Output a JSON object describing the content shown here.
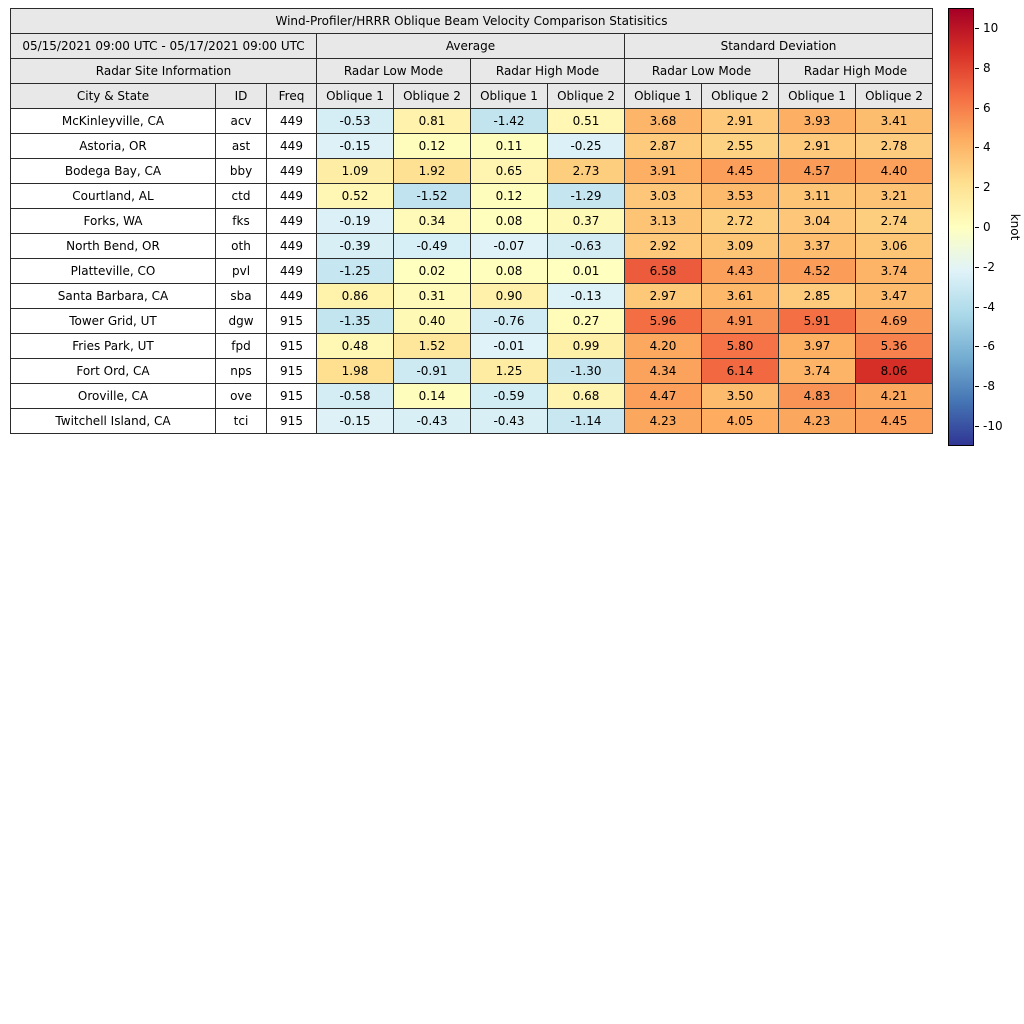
{
  "title": "Wind-Profiler/HRRR Oblique Beam Velocity Comparison Statisitics",
  "header": {
    "date_range": "05/15/2021 09:00 UTC - 05/17/2021 09:00 UTC",
    "group_average": "Average",
    "group_std": "Standard Deviation",
    "site_info": "Radar Site Information",
    "low_mode": "Radar Low Mode",
    "high_mode": "Radar High Mode",
    "col_city": "City & State",
    "col_id": "ID",
    "col_freq": "Freq",
    "oblique1": "Oblique 1",
    "oblique2": "Oblique 2"
  },
  "chart_data": {
    "type": "heatmap",
    "title": "Wind-Profiler/HRRR Oblique Beam Velocity Comparison Statisitics",
    "date_range": "05/15/2021 09:00 UTC - 05/17/2021 09:00 UTC",
    "column_groups": [
      "Average",
      "Standard Deviation"
    ],
    "mode_groups": [
      "Radar Low Mode",
      "Radar High Mode"
    ],
    "value_columns": [
      "Oblique 1",
      "Oblique 2",
      "Oblique 1",
      "Oblique 2",
      "Oblique 1",
      "Oblique 2",
      "Oblique 1",
      "Oblique 2"
    ],
    "rows": [
      {
        "city": "McKinleyville, CA",
        "id": "acv",
        "freq": 449,
        "values": [
          -0.53,
          0.81,
          -1.42,
          0.51,
          3.68,
          2.91,
          3.93,
          3.41
        ]
      },
      {
        "city": "Astoria, OR",
        "id": "ast",
        "freq": 449,
        "values": [
          -0.15,
          0.12,
          0.11,
          -0.25,
          2.87,
          2.55,
          2.91,
          2.78
        ]
      },
      {
        "city": "Bodega Bay, CA",
        "id": "bby",
        "freq": 449,
        "values": [
          1.09,
          1.92,
          0.65,
          2.73,
          3.91,
          4.45,
          4.57,
          4.4
        ]
      },
      {
        "city": "Courtland, AL",
        "id": "ctd",
        "freq": 449,
        "values": [
          0.52,
          -1.52,
          0.12,
          -1.29,
          3.03,
          3.53,
          3.11,
          3.21
        ]
      },
      {
        "city": "Forks, WA",
        "id": "fks",
        "freq": 449,
        "values": [
          -0.19,
          0.34,
          0.08,
          0.37,
          3.13,
          2.72,
          3.04,
          2.74
        ]
      },
      {
        "city": "North Bend, OR",
        "id": "oth",
        "freq": 449,
        "values": [
          -0.39,
          -0.49,
          -0.07,
          -0.63,
          2.92,
          3.09,
          3.37,
          3.06
        ]
      },
      {
        "city": "Platteville, CO",
        "id": "pvl",
        "freq": 449,
        "values": [
          -1.25,
          0.02,
          0.08,
          0.01,
          6.58,
          4.43,
          4.52,
          3.74
        ]
      },
      {
        "city": "Santa Barbara, CA",
        "id": "sba",
        "freq": 449,
        "values": [
          0.86,
          0.31,
          0.9,
          -0.13,
          2.97,
          3.61,
          2.85,
          3.47
        ]
      },
      {
        "city": "Tower Grid, UT",
        "id": "dgw",
        "freq": 915,
        "values": [
          -1.35,
          0.4,
          -0.76,
          0.27,
          5.96,
          4.91,
          5.91,
          4.69
        ]
      },
      {
        "city": "Fries Park, UT",
        "id": "fpd",
        "freq": 915,
        "values": [
          0.48,
          1.52,
          -0.01,
          0.99,
          4.2,
          5.8,
          3.97,
          5.36
        ]
      },
      {
        "city": "Fort Ord, CA",
        "id": "nps",
        "freq": 915,
        "values": [
          1.98,
          -0.91,
          1.25,
          -1.3,
          4.34,
          6.14,
          3.74,
          8.06
        ]
      },
      {
        "city": "Oroville, CA",
        "id": "ove",
        "freq": 915,
        "values": [
          -0.58,
          0.14,
          -0.59,
          0.68,
          4.47,
          3.5,
          4.83,
          4.21
        ]
      },
      {
        "city": "Twitchell Island, CA",
        "id": "tci",
        "freq": 915,
        "values": [
          -0.15,
          -0.43,
          -0.43,
          -1.14,
          4.23,
          4.05,
          4.23,
          4.45
        ]
      }
    ],
    "colorbar": {
      "label": "knot",
      "ticks": [
        10,
        8,
        6,
        4,
        2,
        0,
        -2,
        -4,
        -6,
        -8,
        -10
      ],
      "vmin": -10,
      "vmax": 10,
      "colormap": "RdYlBu_r"
    }
  }
}
